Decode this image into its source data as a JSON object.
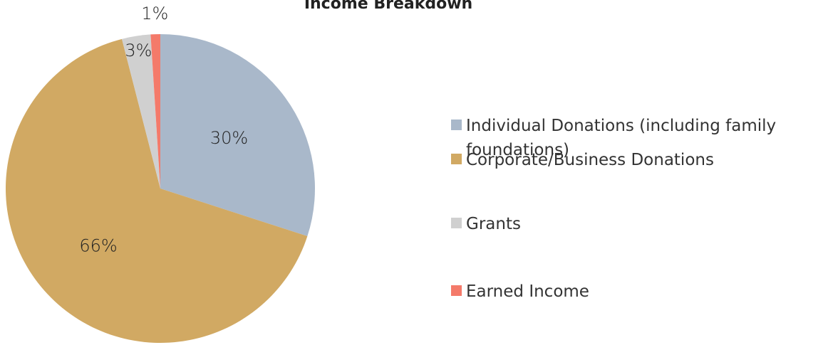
{
  "chart_data": {
    "type": "pie",
    "title": "Income Breakdown",
    "categories": [
      "Individual Donations (including family foundations)",
      "Corporate/Business Donations",
      "Grants",
      "Earned Income"
    ],
    "values": [
      30,
      66,
      3,
      1
    ],
    "value_labels": [
      "30%",
      "66%",
      "3%",
      "1%"
    ],
    "colors": [
      "#a9b8ca",
      "#d1a963",
      "#d0d0d0",
      "#f47a6a"
    ],
    "legend": "right"
  }
}
